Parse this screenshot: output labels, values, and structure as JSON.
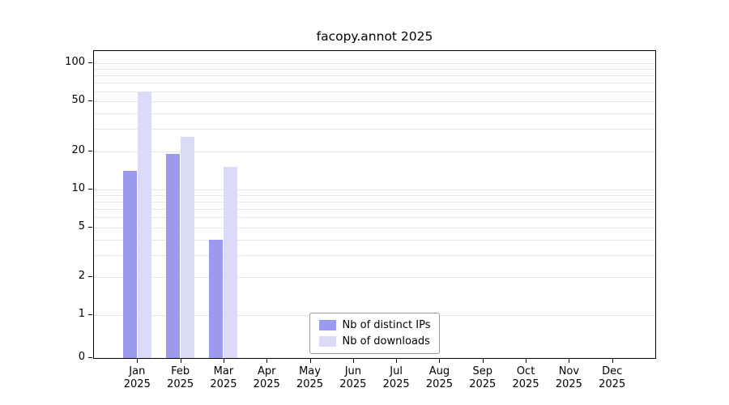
{
  "colors": {
    "ips": "#9b9bee",
    "downloads": "#dbdbf8",
    "grid": "#e6e6e6",
    "axis": "#000000"
  },
  "chart_data": {
    "type": "bar",
    "title": "facopy.annot 2025",
    "categories": [
      "Jan",
      "Feb",
      "Mar",
      "Apr",
      "May",
      "Jun",
      "Jul",
      "Aug",
      "Sep",
      "Oct",
      "Nov",
      "Dec"
    ],
    "year": "2025",
    "series": [
      {
        "name": "Nb of distinct IPs",
        "values": [
          14,
          19,
          4,
          0,
          0,
          0,
          0,
          0,
          0,
          0,
          0,
          0
        ]
      },
      {
        "name": "Nb of downloads",
        "values": [
          60,
          26,
          15,
          0,
          0,
          0,
          0,
          0,
          0,
          0,
          0,
          0
        ]
      }
    ],
    "yscale": "log",
    "yticks": [
      0,
      1,
      2,
      5,
      10,
      20,
      50,
      100
    ],
    "ylim": [
      0,
      100
    ],
    "xlabel": "",
    "ylabel": "",
    "grid": true,
    "legend_position": "lower center"
  }
}
